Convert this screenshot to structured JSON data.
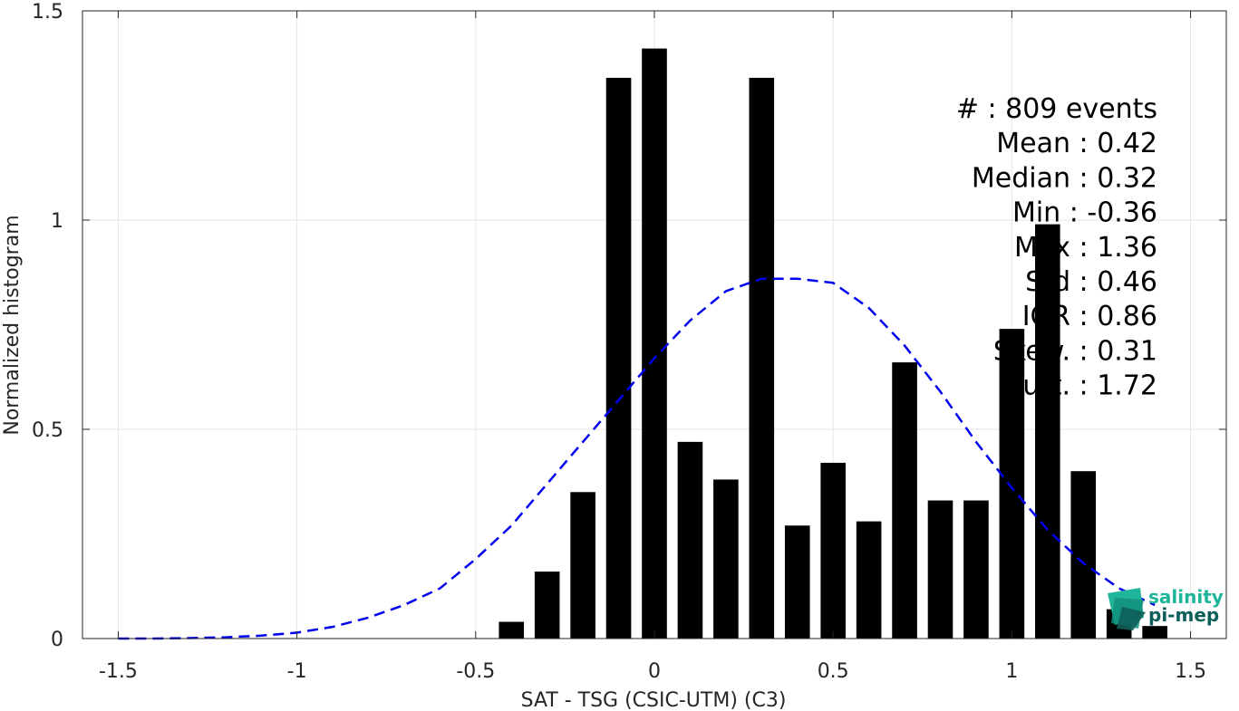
{
  "chart_data": {
    "type": "bar",
    "xlabel": "SAT - TSG (CSIC-UTM) (C3)",
    "ylabel": "Normalized histogram",
    "xlim": [
      -1.6,
      1.6
    ],
    "ylim": [
      0,
      1.5
    ],
    "xticks": [
      -1.5,
      -1,
      -0.5,
      0,
      0.5,
      1,
      1.5
    ],
    "xtick_labels": [
      "-1.5",
      "-1",
      "-0.5",
      "0",
      "0.5",
      "1",
      "1.5"
    ],
    "yticks": [
      0,
      0.5,
      1,
      1.5
    ],
    "ytick_labels": [
      "0",
      "0.5",
      "1",
      "1.5"
    ],
    "grid": true,
    "bar_width": 0.07,
    "bar_color": "#000000",
    "bars": {
      "x": [
        -0.4,
        -0.3,
        -0.2,
        -0.1,
        0.0,
        0.1,
        0.2,
        0.3,
        0.4,
        0.5,
        0.6,
        0.7,
        0.8,
        0.9,
        1.0,
        1.1,
        1.2,
        1.3,
        1.4
      ],
      "values": [
        0.04,
        0.16,
        0.35,
        1.34,
        1.41,
        0.47,
        0.38,
        1.34,
        0.27,
        0.42,
        0.28,
        0.66,
        0.33,
        0.33,
        0.74,
        0.99,
        0.4,
        0.07,
        0.03
      ]
    },
    "fit_curve": {
      "style": "dashed",
      "color": "#0000ee",
      "x": [
        -1.5,
        -1.4,
        -1.3,
        -1.2,
        -1.1,
        -1.0,
        -0.9,
        -0.8,
        -0.7,
        -0.6,
        -0.5,
        -0.4,
        -0.3,
        -0.2,
        -0.1,
        0.0,
        0.1,
        0.2,
        0.3,
        0.4,
        0.5,
        0.6,
        0.7,
        0.8,
        0.9,
        1.0,
        1.1,
        1.2,
        1.3,
        1.4
      ],
      "y": [
        0.0,
        0.0,
        0.001,
        0.003,
        0.007,
        0.014,
        0.028,
        0.05,
        0.08,
        0.12,
        0.19,
        0.27,
        0.37,
        0.47,
        0.57,
        0.67,
        0.76,
        0.83,
        0.86,
        0.86,
        0.85,
        0.79,
        0.7,
        0.59,
        0.47,
        0.36,
        0.26,
        0.18,
        0.12,
        0.08
      ]
    }
  },
  "stats": {
    "lines": [
      "#  : 809 events",
      "Mean : 0.42",
      "Median : 0.32",
      "Min : -0.36",
      "Max : 1.36",
      "Std : 0.46",
      "IQR : 0.86",
      "Skew. : 0.31",
      "Kurt. : 1.72"
    ]
  },
  "logo": {
    "line1": "salinity",
    "line2": "pi-mep",
    "color1": "#1fb59a",
    "color2": "#0e5f5a"
  }
}
